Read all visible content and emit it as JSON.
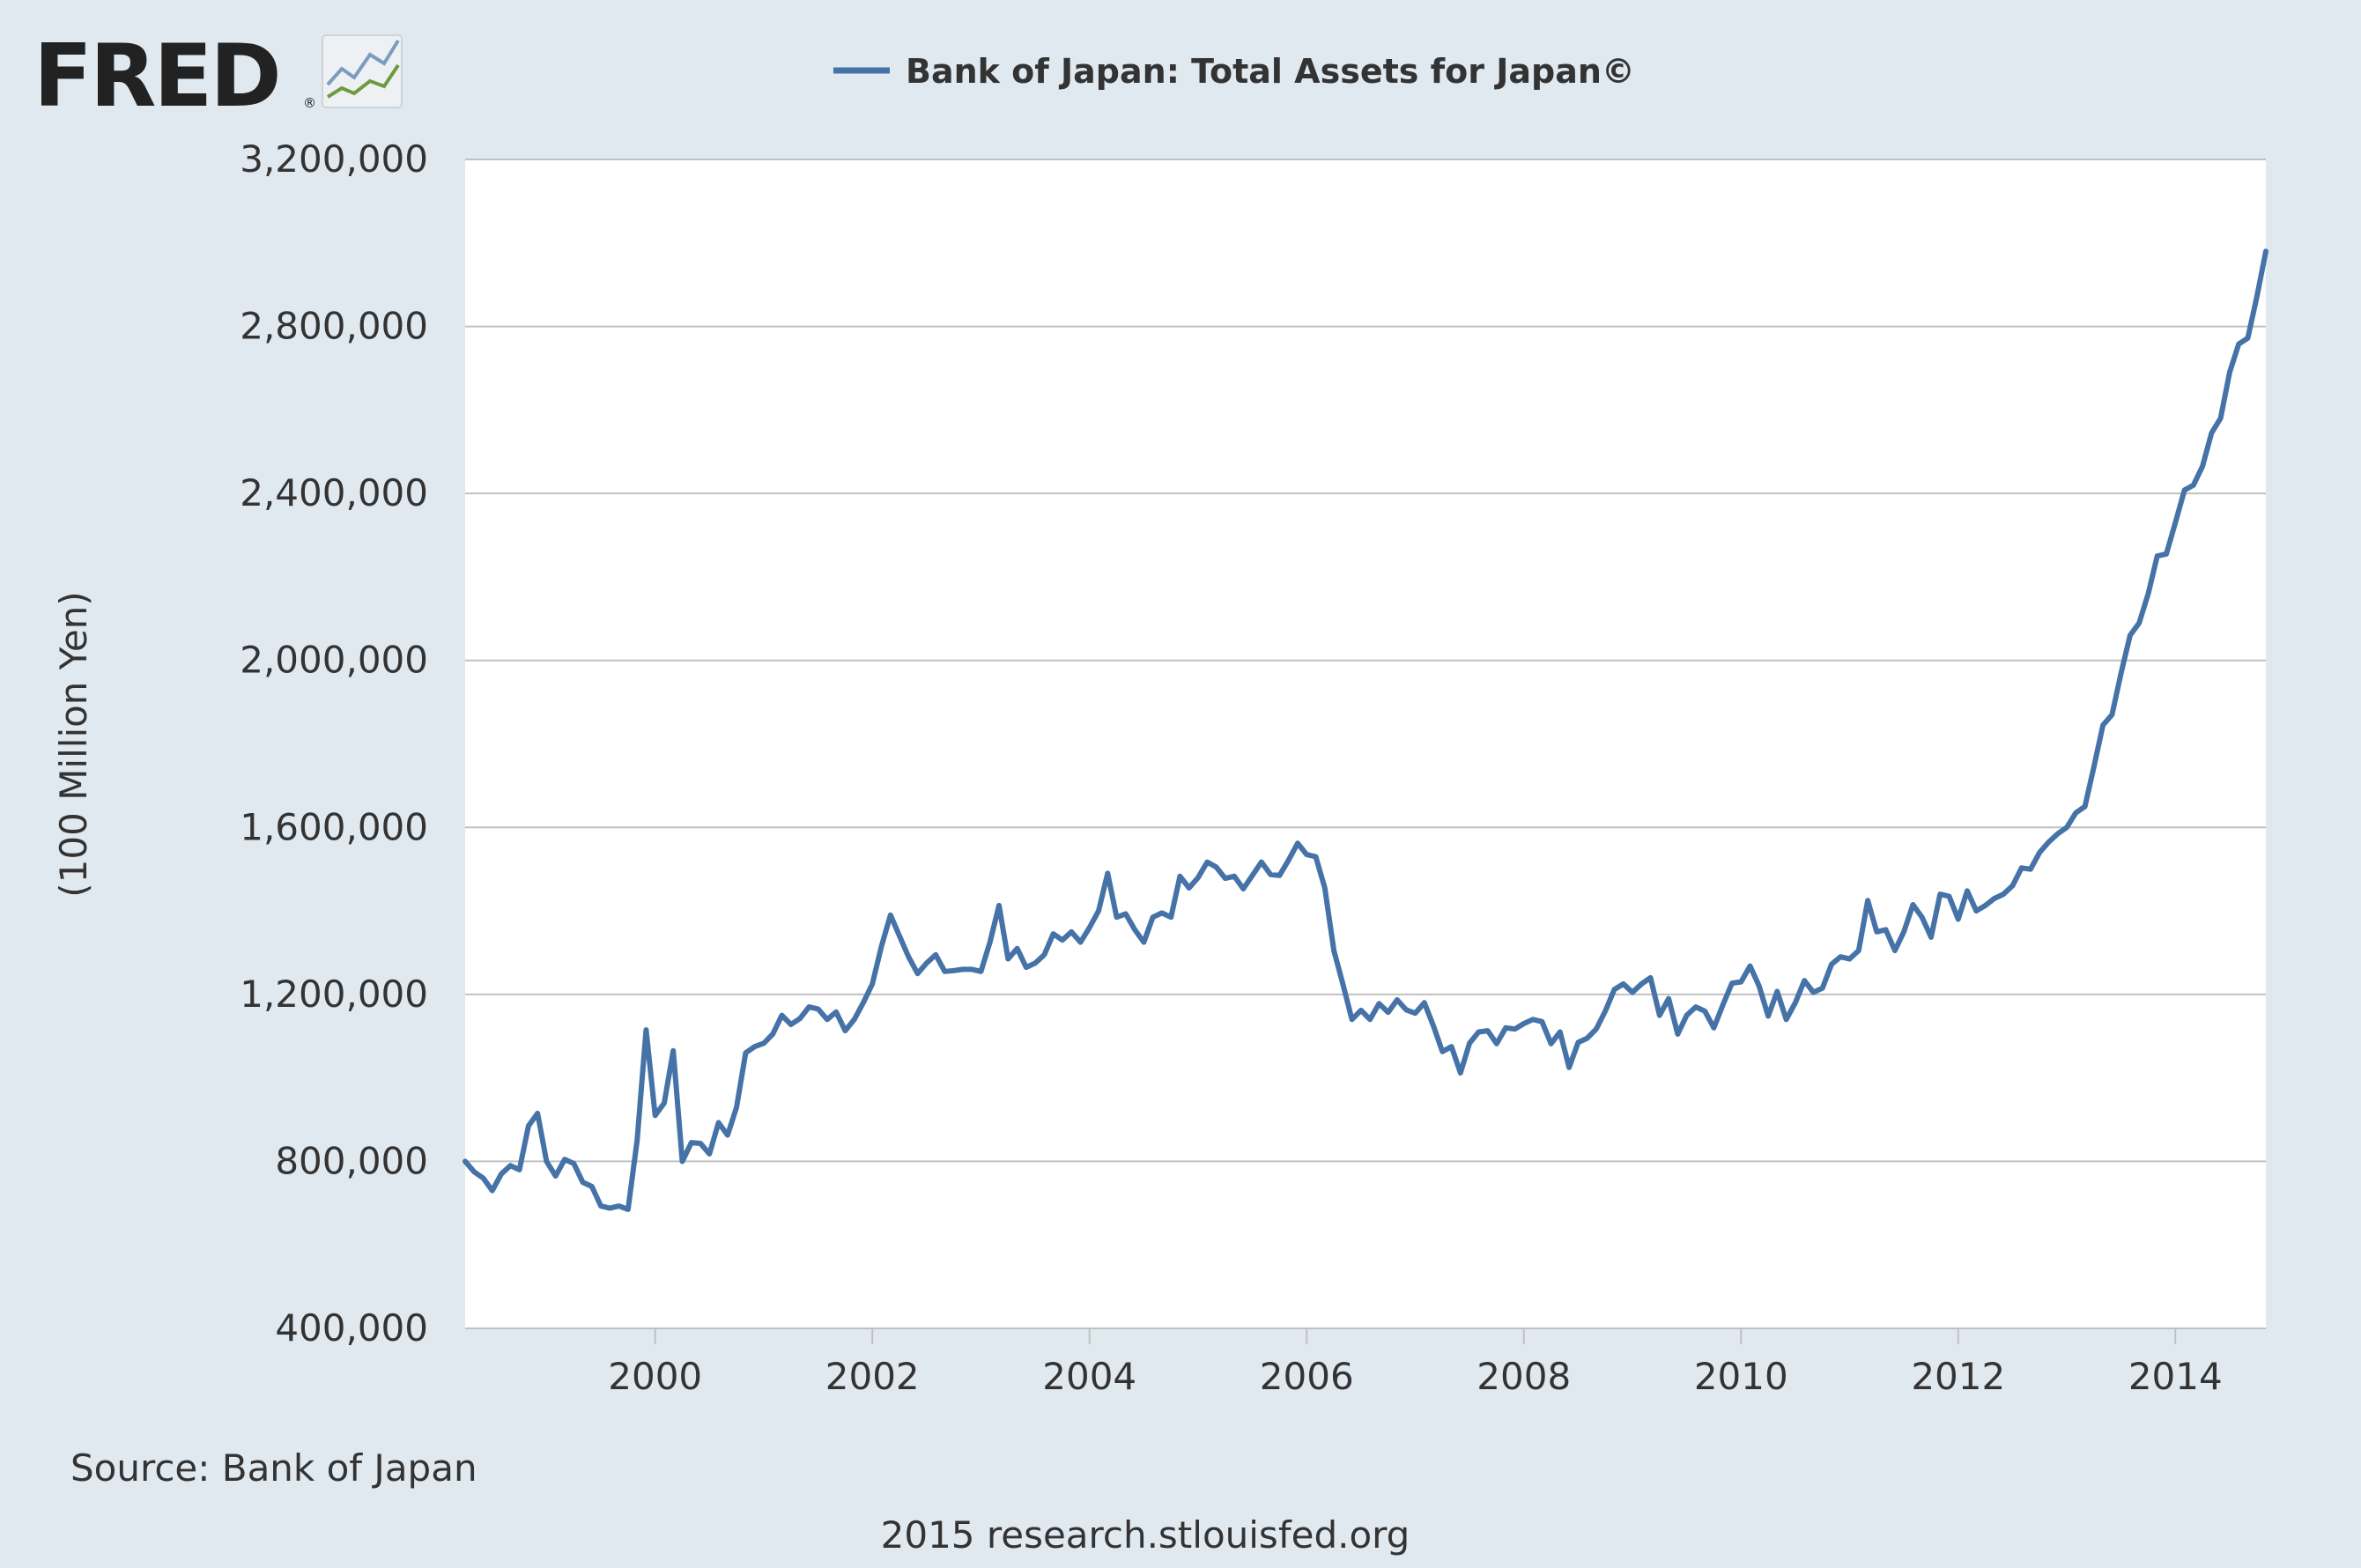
{
  "logo": {
    "text": "FRED",
    "registered": "®"
  },
  "legend": {
    "label": "Bank of Japan: Total Assets for Japan©",
    "color": "#4572a7"
  },
  "footer": {
    "source": "Source: Bank of Japan",
    "credit": "2015 research.stlouisfed.org"
  },
  "colors": {
    "background": "#e1e9f0",
    "plot_background": "#ffffff",
    "gridline": "#c0c0c0",
    "series": "#4572a7",
    "text": "#333333"
  },
  "chart_data": {
    "type": "line",
    "title": "",
    "xlabel": "",
    "ylabel": "(100 Million Yen)",
    "ylim": [
      400000,
      3200000
    ],
    "xlim": [
      "1998-04",
      "2014-11"
    ],
    "yticks": [
      400000,
      800000,
      1200000,
      1600000,
      2000000,
      2400000,
      2800000,
      3200000
    ],
    "ytick_labels": [
      "400,000",
      "800,000",
      "1,200,000",
      "1,600,000",
      "2,000,000",
      "2,400,000",
      "2,800,000",
      "3,200,000"
    ],
    "xticks": [
      "2000-01",
      "2002-01",
      "2004-01",
      "2006-01",
      "2008-01",
      "2010-01",
      "2012-01",
      "2014-01"
    ],
    "xtick_labels": [
      "2000",
      "2002",
      "2004",
      "2006",
      "2008",
      "2010",
      "2012",
      "2014"
    ],
    "grid": true,
    "legend_position": "top",
    "series": [
      {
        "name": "Bank of Japan: Total Assets for Japan©",
        "frequency": "monthly",
        "start": "1998-04",
        "values": [
          800000,
          775000,
          760000,
          730000,
          770000,
          790000,
          780000,
          885000,
          915000,
          800000,
          765000,
          805000,
          795000,
          750000,
          740000,
          693000,
          688000,
          693000,
          685000,
          850000,
          1115000,
          910000,
          940000,
          1065000,
          800000,
          845000,
          843000,
          818000,
          893000,
          863000,
          930000,
          1060000,
          1075000,
          1083000,
          1105000,
          1150000,
          1128000,
          1142000,
          1170000,
          1165000,
          1140000,
          1158000,
          1113000,
          1140000,
          1180000,
          1225000,
          1315000,
          1390000,
          1340000,
          1290000,
          1250000,
          1275000,
          1295000,
          1255000,
          1257000,
          1260000,
          1260000,
          1255000,
          1325000,
          1413000,
          1285000,
          1310000,
          1265000,
          1275000,
          1295000,
          1345000,
          1330000,
          1350000,
          1325000,
          1360000,
          1400000,
          1490000,
          1385000,
          1393000,
          1355000,
          1325000,
          1385000,
          1395000,
          1385000,
          1483000,
          1455000,
          1480000,
          1517000,
          1505000,
          1478000,
          1483000,
          1453000,
          1485000,
          1517000,
          1487000,
          1485000,
          1522000,
          1562000,
          1535000,
          1530000,
          1455000,
          1305000,
          1225000,
          1140000,
          1162000,
          1140000,
          1178000,
          1157000,
          1187000,
          1163000,
          1155000,
          1180000,
          1125000,
          1063000,
          1075000,
          1012000,
          1083000,
          1110000,
          1113000,
          1082000,
          1120000,
          1117000,
          1130000,
          1140000,
          1135000,
          1082000,
          1110000,
          1025000,
          1085000,
          1095000,
          1117000,
          1160000,
          1212000,
          1225000,
          1205000,
          1225000,
          1240000,
          1150000,
          1190000,
          1105000,
          1150000,
          1170000,
          1160000,
          1120000,
          1175000,
          1227000,
          1230000,
          1268000,
          1220000,
          1148000,
          1207000,
          1140000,
          1180000,
          1233000,
          1205000,
          1215000,
          1272000,
          1290000,
          1285000,
          1305000,
          1425000,
          1350000,
          1355000,
          1305000,
          1350000,
          1415000,
          1385000,
          1337000,
          1440000,
          1435000,
          1380000,
          1448000,
          1400000,
          1413000,
          1430000,
          1440000,
          1460000,
          1503000,
          1500000,
          1540000,
          1565000,
          1585000,
          1600000,
          1635000,
          1650000,
          1745000,
          1845000,
          1870000,
          1970000,
          2060000,
          2090000,
          2160000,
          2250000,
          2255000,
          2330000,
          2408000,
          2420000,
          2465000,
          2545000,
          2580000,
          2690000,
          2758000,
          2772000,
          2870000,
          2980000
        ]
      }
    ]
  }
}
